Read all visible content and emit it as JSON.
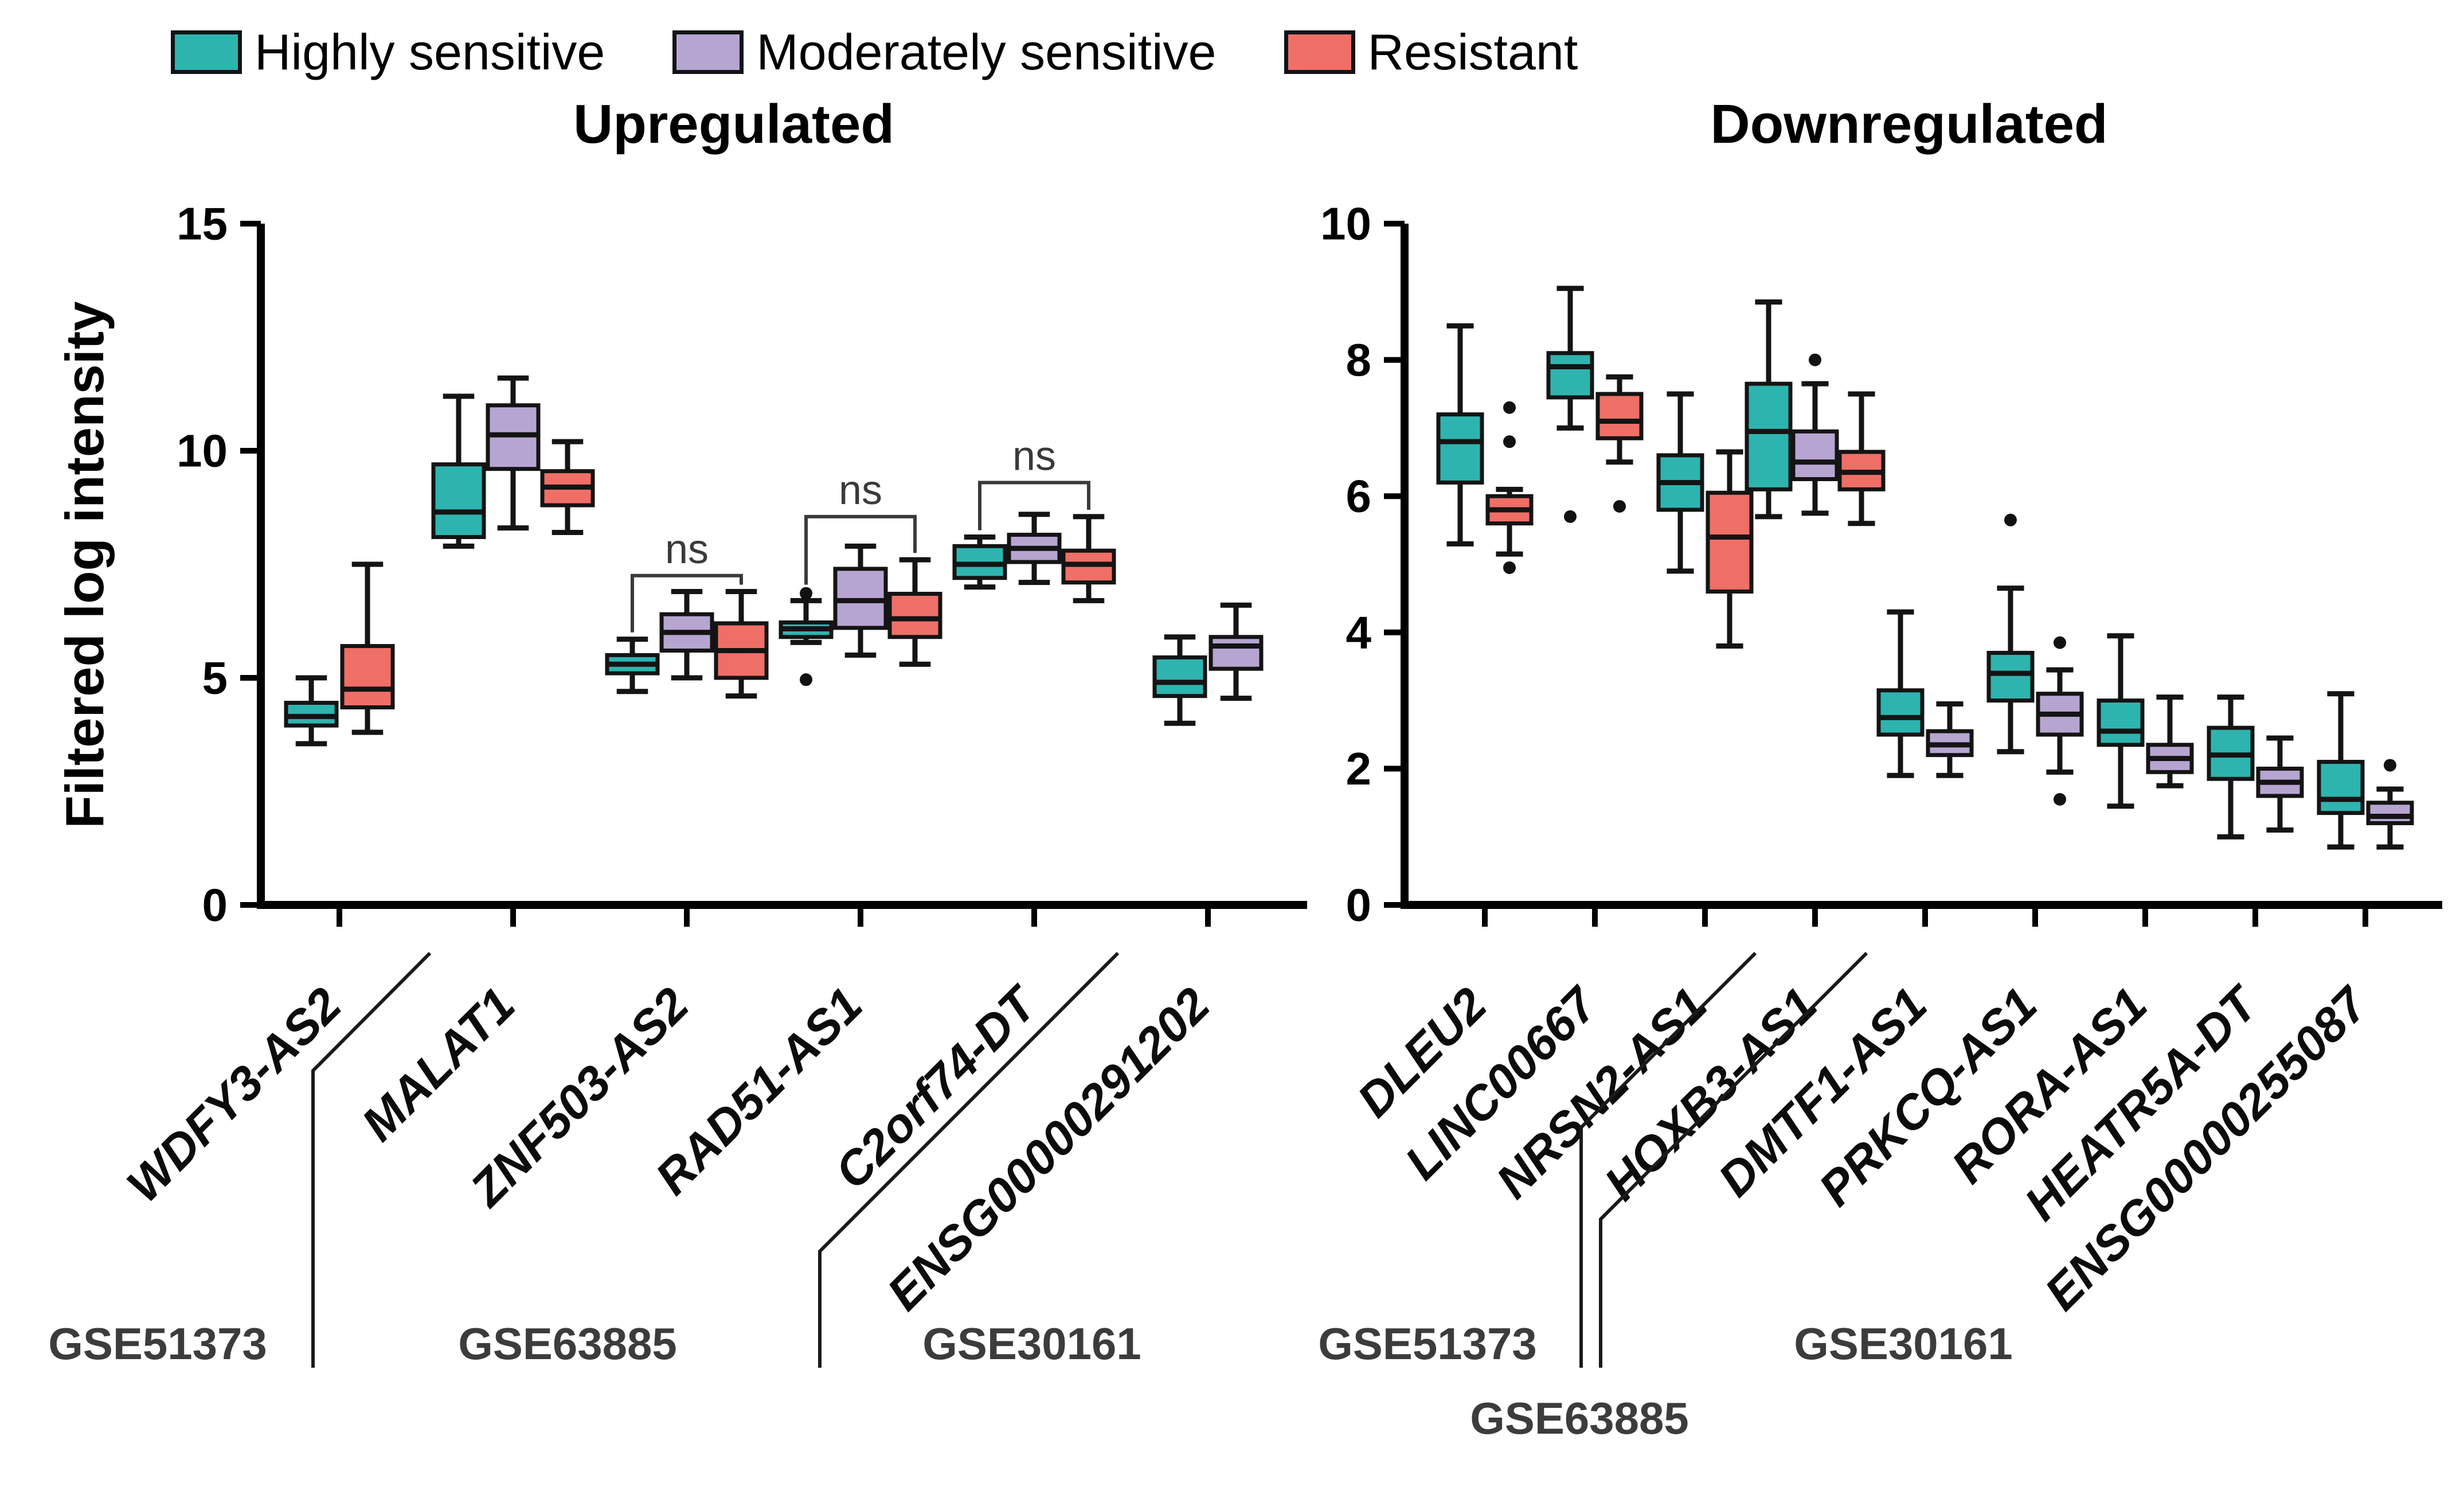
{
  "legend": {
    "items": [
      {
        "label": "Highly sensitive",
        "key": "highly_sensitive"
      },
      {
        "label": "Moderately sensitive",
        "key": "moderately_sensitive"
      },
      {
        "label": "Resistant",
        "key": "resistant"
      }
    ]
  },
  "colors": {
    "highly_sensitive": "#2eb4af",
    "moderately_sensitive": "#b7a5d1",
    "resistant": "#ef6f66",
    "box_border": "#141414",
    "axis": "#000000",
    "annotation": "#3a3a3a",
    "dataset_label": "#3c3c3c"
  },
  "ylabel": "Filtered log intensity",
  "chart_data": [
    {
      "type": "box",
      "title": "Upregulated",
      "ylabel": "Filtered log intensity",
      "ylim": [
        0,
        15
      ],
      "yticks": [
        0,
        5,
        10,
        15
      ],
      "series": [
        "highly_sensitive",
        "moderately_sensitive",
        "resistant"
      ],
      "groups": [
        {
          "gene": "WDFY3-AS2",
          "dataset": "GSE51373",
          "boxes": [
            {
              "series": "highly_sensitive",
              "whislo": 3.55,
              "q1": 3.95,
              "med": 4.15,
              "q3": 4.45,
              "whishi": 5.0,
              "outliers": []
            },
            {
              "series": "resistant",
              "whislo": 3.8,
              "q1": 4.35,
              "med": 4.75,
              "q3": 5.7,
              "whishi": 7.5,
              "outliers": []
            }
          ]
        },
        {
          "gene": "MALAT1",
          "dataset": "GSE63885",
          "boxes": [
            {
              "series": "highly_sensitive",
              "whislo": 7.9,
              "q1": 8.1,
              "med": 8.65,
              "q3": 9.7,
              "whishi": 11.2,
              "outliers": []
            },
            {
              "series": "moderately_sensitive",
              "whislo": 8.3,
              "q1": 9.6,
              "med": 10.35,
              "q3": 11.0,
              "whishi": 11.6,
              "outliers": []
            },
            {
              "series": "resistant",
              "whislo": 8.2,
              "q1": 8.8,
              "med": 9.2,
              "q3": 9.55,
              "whishi": 10.2,
              "outliers": []
            }
          ]
        },
        {
          "gene": "ZNF503-AS2",
          "dataset": "GSE63885",
          "boxes": [
            {
              "series": "highly_sensitive",
              "whislo": 4.7,
              "q1": 5.1,
              "med": 5.3,
              "q3": 5.5,
              "whishi": 5.85,
              "outliers": []
            },
            {
              "series": "moderately_sensitive",
              "whislo": 5.0,
              "q1": 5.6,
              "med": 6.0,
              "q3": 6.4,
              "whishi": 6.9,
              "outliers": []
            },
            {
              "series": "resistant",
              "whislo": 4.6,
              "q1": 5.0,
              "med": 5.6,
              "q3": 6.2,
              "whishi": 6.9,
              "outliers": []
            }
          ]
        },
        {
          "gene": "RAD51-AS1",
          "dataset": "GSE63885",
          "boxes": [
            {
              "series": "highly_sensitive",
              "whislo": 5.78,
              "q1": 5.9,
              "med": 6.08,
              "q3": 6.22,
              "whishi": 6.7,
              "outliers": [
                6.86,
                4.96
              ]
            },
            {
              "series": "moderately_sensitive",
              "whislo": 5.5,
              "q1": 6.1,
              "med": 6.7,
              "q3": 7.4,
              "whishi": 7.9,
              "outliers": []
            },
            {
              "series": "resistant",
              "whislo": 5.3,
              "q1": 5.9,
              "med": 6.3,
              "q3": 6.85,
              "whishi": 7.6,
              "outliers": []
            }
          ]
        },
        {
          "gene": "C2orf74-DT",
          "dataset": "GSE63885",
          "boxes": [
            {
              "series": "highly_sensitive",
              "whislo": 7.0,
              "q1": 7.2,
              "med": 7.5,
              "q3": 7.9,
              "whishi": 8.1,
              "outliers": []
            },
            {
              "series": "moderately_sensitive",
              "whislo": 7.1,
              "q1": 7.55,
              "med": 7.85,
              "q3": 8.15,
              "whishi": 8.6,
              "outliers": []
            },
            {
              "series": "resistant",
              "whislo": 6.7,
              "q1": 7.1,
              "med": 7.5,
              "q3": 7.8,
              "whishi": 8.55,
              "outliers": []
            }
          ]
        },
        {
          "gene": "ENSG00000291202",
          "dataset": "GSE30161",
          "boxes": [
            {
              "series": "highly_sensitive",
              "whislo": 4.0,
              "q1": 4.6,
              "med": 4.9,
              "q3": 5.45,
              "whishi": 5.9,
              "outliers": []
            },
            {
              "series": "moderately_sensitive",
              "whislo": 4.55,
              "q1": 5.2,
              "med": 5.7,
              "q3": 5.9,
              "whishi": 6.6,
              "outliers": []
            }
          ]
        }
      ],
      "annotations": [
        {
          "label": "ns",
          "gene": "ZNF503-AS2",
          "from": "highly_sensitive",
          "to": "resistant",
          "bar": 7.25,
          "drop_from": 6.0,
          "drop_to": 7.05
        },
        {
          "label": "ns",
          "gene": "RAD51-AS1",
          "from": "highly_sensitive",
          "to": "resistant",
          "bar": 8.55,
          "drop_from": 7.05,
          "drop_to": 7.75
        },
        {
          "label": "ns",
          "gene": "C2orf74-DT",
          "from": "highly_sensitive",
          "to": "resistant",
          "bar": 9.3,
          "drop_from": 8.25,
          "drop_to": 8.7
        }
      ],
      "dataset_labels": [
        "GSE51373",
        "GSE63885",
        "GSE30161"
      ]
    },
    {
      "type": "box",
      "title": "Downregulated",
      "ylabel": "Filtered log intensity",
      "ylim": [
        0,
        10
      ],
      "yticks": [
        0,
        2,
        4,
        6,
        8,
        10
      ],
      "series": [
        "highly_sensitive",
        "moderately_sensitive",
        "resistant"
      ],
      "groups": [
        {
          "gene": "DLEU2",
          "dataset": "GSE51373",
          "boxes": [
            {
              "series": "highly_sensitive",
              "whislo": 5.3,
              "q1": 6.2,
              "med": 6.8,
              "q3": 7.2,
              "whishi": 8.5,
              "outliers": []
            },
            {
              "series": "resistant",
              "whislo": 5.15,
              "q1": 5.6,
              "med": 5.8,
              "q3": 6.0,
              "whishi": 6.1,
              "outliers": [
                7.3,
                6.8,
                4.95
              ]
            }
          ]
        },
        {
          "gene": "LINC00667",
          "dataset": "GSE51373",
          "boxes": [
            {
              "series": "highly_sensitive",
              "whislo": 7.0,
              "q1": 7.45,
              "med": 7.9,
              "q3": 8.1,
              "whishi": 9.05,
              "outliers": [
                5.7
              ]
            },
            {
              "series": "resistant",
              "whislo": 6.5,
              "q1": 6.85,
              "med": 7.1,
              "q3": 7.5,
              "whishi": 7.75,
              "outliers": [
                5.85
              ]
            }
          ]
        },
        {
          "gene": "NRSN2-AS1",
          "dataset": "GSE51373",
          "boxes": [
            {
              "series": "highly_sensitive",
              "whislo": 4.9,
              "q1": 5.8,
              "med": 6.2,
              "q3": 6.6,
              "whishi": 7.5,
              "outliers": []
            },
            {
              "series": "resistant",
              "whislo": 3.8,
              "q1": 4.6,
              "med": 5.4,
              "q3": 6.05,
              "whishi": 6.65,
              "outliers": []
            }
          ]
        },
        {
          "gene": "HOXB3-AS1",
          "dataset": "GSE63885",
          "boxes": [
            {
              "series": "highly_sensitive",
              "whislo": 5.7,
              "q1": 6.1,
              "med": 6.95,
              "q3": 7.65,
              "whishi": 8.85,
              "outliers": []
            },
            {
              "series": "moderately_sensitive",
              "whislo": 5.75,
              "q1": 6.25,
              "med": 6.5,
              "q3": 6.95,
              "whishi": 7.65,
              "outliers": [
                8.0
              ]
            },
            {
              "series": "resistant",
              "whislo": 5.6,
              "q1": 6.1,
              "med": 6.35,
              "q3": 6.65,
              "whishi": 7.5,
              "outliers": []
            }
          ]
        },
        {
          "gene": "DMTF1-AS1",
          "dataset": "GSE30161",
          "boxes": [
            {
              "series": "highly_sensitive",
              "whislo": 1.9,
              "q1": 2.5,
              "med": 2.75,
              "q3": 3.15,
              "whishi": 4.3,
              "outliers": []
            },
            {
              "series": "moderately_sensitive",
              "whislo": 1.9,
              "q1": 2.2,
              "med": 2.35,
              "q3": 2.55,
              "whishi": 2.95,
              "outliers": []
            }
          ]
        },
        {
          "gene": "PRKCQ-AS1",
          "dataset": "GSE30161",
          "boxes": [
            {
              "series": "highly_sensitive",
              "whislo": 2.25,
              "q1": 3.0,
              "med": 3.4,
              "q3": 3.7,
              "whishi": 4.65,
              "outliers": [
                5.65
              ]
            },
            {
              "series": "moderately_sensitive",
              "whislo": 1.95,
              "q1": 2.5,
              "med": 2.8,
              "q3": 3.1,
              "whishi": 3.45,
              "outliers": [
                3.85,
                1.55
              ]
            }
          ]
        },
        {
          "gene": "RORA-AS1",
          "dataset": "GSE30161",
          "boxes": [
            {
              "series": "highly_sensitive",
              "whislo": 1.45,
              "q1": 2.35,
              "med": 2.55,
              "q3": 3.0,
              "whishi": 3.95,
              "outliers": []
            },
            {
              "series": "moderately_sensitive",
              "whislo": 1.75,
              "q1": 1.95,
              "med": 2.15,
              "q3": 2.35,
              "whishi": 3.05,
              "outliers": []
            }
          ]
        },
        {
          "gene": "HEATR5A-DT",
          "dataset": "GSE30161",
          "boxes": [
            {
              "series": "highly_sensitive",
              "whislo": 1.0,
              "q1": 1.85,
              "med": 2.2,
              "q3": 2.6,
              "whishi": 3.05,
              "outliers": []
            },
            {
              "series": "moderately_sensitive",
              "whislo": 1.1,
              "q1": 1.6,
              "med": 1.8,
              "q3": 2.0,
              "whishi": 2.45,
              "outliers": []
            }
          ]
        },
        {
          "gene": "ENSG00000255087",
          "dataset": "GSE30161",
          "boxes": [
            {
              "series": "highly_sensitive",
              "whislo": 0.85,
              "q1": 1.35,
              "med": 1.55,
              "q3": 2.1,
              "whishi": 3.1,
              "outliers": []
            },
            {
              "series": "moderately_sensitive",
              "whislo": 0.85,
              "q1": 1.2,
              "med": 1.3,
              "q3": 1.5,
              "whishi": 1.7,
              "outliers": [
                2.05
              ]
            }
          ]
        }
      ],
      "annotations": [],
      "dataset_labels": [
        "GSE51373",
        "GSE63885",
        "GSE30161"
      ]
    }
  ]
}
